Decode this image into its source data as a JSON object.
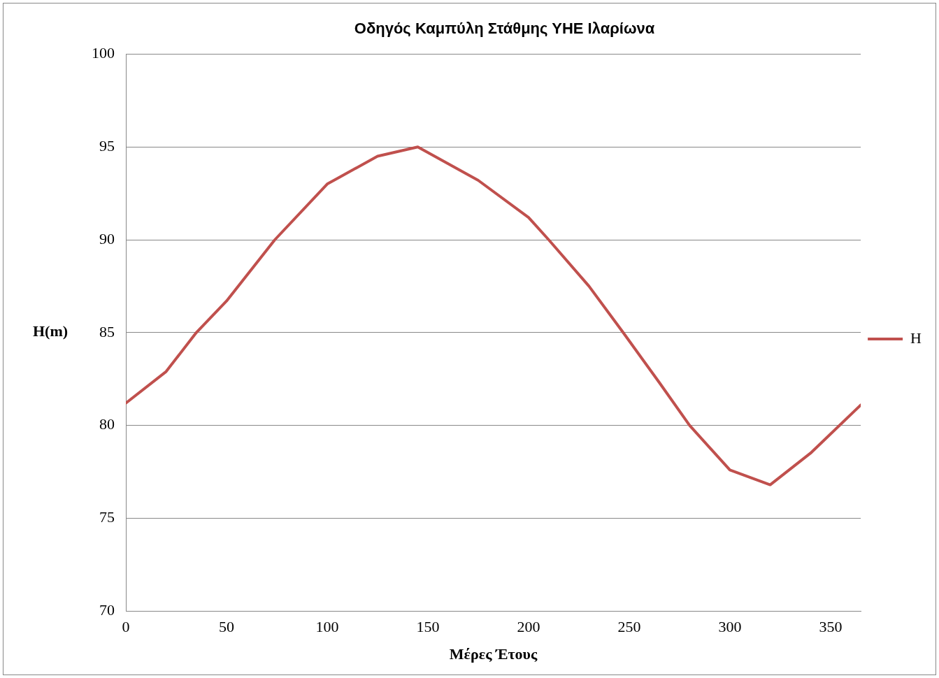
{
  "chart_data": {
    "type": "line",
    "title": "Οδηγός Καμπύλη Στάθμης ΥΗΕ Ιλαρίωνα",
    "xlabel": "Μέρες Έτους",
    "ylabel": "H(m)",
    "x": [
      0,
      20,
      35,
      50,
      74,
      100,
      125,
      145,
      175,
      200,
      210,
      230,
      247,
      265,
      280,
      300,
      320,
      340,
      365
    ],
    "series": [
      {
        "name": "H",
        "color": "#c0504d",
        "values": [
          81.2,
          82.9,
          85,
          86.7,
          90,
          93,
          94.5,
          95,
          93.2,
          91.2,
          90,
          87.5,
          85,
          82.3,
          80,
          77.6,
          76.8,
          78.5,
          81.1
        ]
      }
    ],
    "xlim": [
      0,
      365
    ],
    "xticks": [
      0,
      50,
      100,
      150,
      200,
      250,
      300,
      350
    ],
    "ylim": [
      70,
      100
    ],
    "yticks": [
      70,
      75,
      80,
      85,
      90,
      95,
      100
    ],
    "grid": "y",
    "legend": "right",
    "marker": "none",
    "line_style": "solid"
  }
}
